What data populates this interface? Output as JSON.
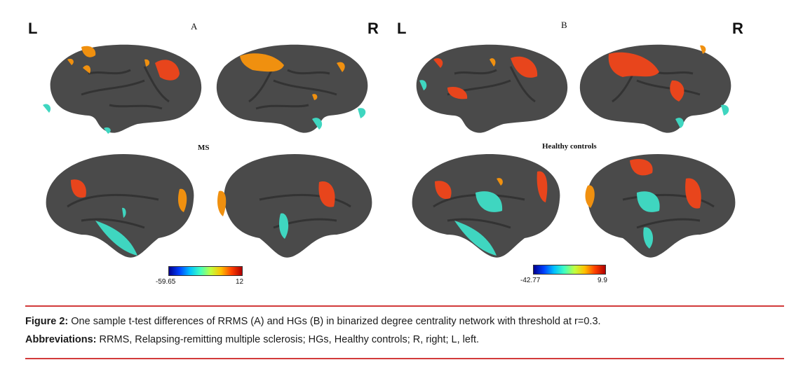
{
  "figure": {
    "panel_a": {
      "letter": "A",
      "group_label": "MS",
      "side_left": "L",
      "side_right": "R",
      "colorbar": {
        "min_label": "-59.65",
        "max_label": "12"
      }
    },
    "panel_b": {
      "letter": "B",
      "group_label": "Healthy controls",
      "side_left": "L",
      "side_right": "R",
      "colorbar": {
        "min_label": "-42.77",
        "max_label": "9.9"
      }
    },
    "colors": {
      "brain": "#4a4a4a",
      "brain_dark": "#3a3a3a",
      "hot": "#e8451c",
      "warm": "#f0900f",
      "cool": "#3fd6c0",
      "rule": "#d23a3a"
    }
  },
  "caption": {
    "figure_label": "Figure 2:",
    "figure_text": " One sample t-test differences of RRMS (A) and HGs (B) in binarized degree centrality network with threshold at r=0.3.",
    "abbrev_label": "Abbreviations:",
    "abbrev_text": " RRMS, Relapsing-remitting multiple sclerosis; HGs, Healthy controls; R, right; L, left."
  }
}
